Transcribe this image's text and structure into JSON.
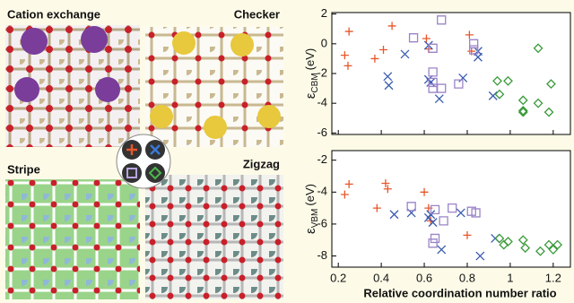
{
  "chart_data": [
    {
      "type": "scatter",
      "y_label": {
        "symbol": "ε",
        "subscript": "CBM",
        "unit": "(eV)"
      },
      "xlim": [
        0.17,
        1.28
      ],
      "xticks": [
        0.2,
        0.4,
        0.6,
        0.8,
        1,
        1.2
      ],
      "ylim": [
        -6.1,
        2.1
      ],
      "yticks": [
        -6,
        -4,
        -2,
        0,
        2
      ],
      "series": [
        {
          "name": "Cation exchange",
          "color": "#e8562a",
          "marker": "plus",
          "x": [
            0.25,
            0.23,
            0.245,
            0.37,
            0.41,
            0.45,
            0.61,
            0.62,
            0.81,
            0.82
          ],
          "values": [
            0.83,
            -0.77,
            -1.48,
            -1.0,
            -0.4,
            1.2,
            0.35,
            -0.35,
            0.6,
            -0.5
          ]
        },
        {
          "name": "Checker",
          "color": "#3a5db0",
          "marker": "x",
          "x": [
            0.43,
            0.435,
            0.51,
            0.62,
            0.63,
            0.62,
            0.67,
            0.78,
            0.85,
            0.85,
            0.92
          ],
          "values": [
            -2.2,
            -2.8,
            -0.7,
            -2.4,
            -2.6,
            -0.1,
            -3.7,
            -2.3,
            -0.5,
            -0.9,
            -3.5
          ]
        },
        {
          "name": "Stripe",
          "color": "#9b84c8",
          "marker": "square",
          "x": [
            0.55,
            0.68,
            0.64,
            0.64,
            0.64,
            0.64,
            0.68,
            0.76,
            0.83,
            0.83
          ],
          "values": [
            0.4,
            1.6,
            -0.3,
            -1.9,
            -2.6,
            -3.0,
            -3.0,
            -2.7,
            0,
            -0.4
          ]
        },
        {
          "name": "Zigzag",
          "color": "#3a9a3a",
          "marker": "diamond",
          "x": [
            0.94,
            0.95,
            0.99,
            1.06,
            1.06,
            1.06,
            1.13,
            1.13,
            1.18,
            1.19
          ],
          "values": [
            -2.5,
            -3.4,
            -2.5,
            -3.8,
            -4.6,
            -4.5,
            -4.0,
            -0.3,
            -4.6,
            -2.7
          ]
        }
      ]
    },
    {
      "type": "scatter",
      "y_label": {
        "symbol": "ε",
        "subscript": "VBM",
        "unit": "(eV)"
      },
      "x_label": "Relative coordination number ratio",
      "xlim": [
        0.17,
        1.28
      ],
      "xticks": [
        0.2,
        0.4,
        0.6,
        0.8,
        1,
        1.2
      ],
      "ylim": [
        -8.7,
        -1.4
      ],
      "yticks": [
        -8,
        -6,
        -4,
        -2
      ],
      "series": [
        {
          "color": "#e8562a",
          "marker": "plus",
          "x": [
            0.25,
            0.23,
            0.38,
            0.42,
            0.43,
            0.6,
            0.62,
            0.63,
            0.8
          ],
          "values": [
            -3.5,
            -4.15,
            -5.0,
            -3.45,
            -3.8,
            -4.0,
            -5.0,
            -5.8,
            -6.7
          ]
        },
        {
          "color": "#3a5db0",
          "marker": "x",
          "x": [
            0.46,
            0.54,
            0.63,
            0.64,
            0.62,
            0.68,
            0.77,
            0.86,
            0.93
          ],
          "values": [
            -5.4,
            -5.3,
            -5.4,
            -5.9,
            -5.6,
            -7.6,
            -5.3,
            -8.0,
            -6.9
          ]
        },
        {
          "color": "#9b84c8",
          "marker": "square",
          "x": [
            0.54,
            0.65,
            0.65,
            0.64,
            0.69,
            0.73,
            0.82,
            0.84
          ],
          "values": [
            -4.9,
            -5.1,
            -6.9,
            -7.2,
            -5.8,
            -5.0,
            -5.2,
            -5.3
          ]
        },
        {
          "color": "#3a9a3a",
          "marker": "diamond",
          "x": [
            0.95,
            0.97,
            0.99,
            1.06,
            1.07,
            1.14,
            1.18,
            1.2,
            1.22
          ],
          "values": [
            -6.9,
            -7.3,
            -7.1,
            -7.0,
            -7.5,
            -7.7,
            -7.3,
            -7.6,
            -7.3
          ]
        }
      ]
    }
  ]
}
